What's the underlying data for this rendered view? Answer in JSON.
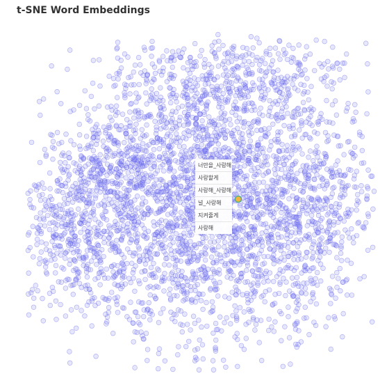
{
  "header": {
    "title": "t-SNE Word Embeddings"
  },
  "colors": {
    "point_fill": "#8c8cf5",
    "point_stroke": "#5050e6",
    "highlight_fill": "#f2b640",
    "highlight_stroke": "#4caf8a"
  },
  "chart_data": {
    "type": "scatter",
    "title": "t-SNE Word Embeddings",
    "xlabel": "",
    "ylabel": "",
    "axes": "none",
    "grid": false,
    "legend": "none",
    "series": [
      {
        "points": "≈4000 unlabeled word-embedding points forming a dense blob; rendered procedurally",
        "highlighted_word": "사랑해_사랑해"
      }
    ],
    "nearest_words": [
      "너만을_사랑해",
      "사랑할게",
      "사랑해_사랑해",
      "널_사랑해",
      "지켜줄게",
      "사랑해"
    ]
  }
}
